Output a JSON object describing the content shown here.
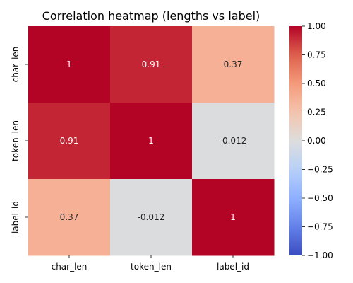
{
  "chart_data": {
    "type": "heatmap",
    "title": "Correlation heatmap (lengths vs label)",
    "x_labels": [
      "char_len",
      "token_len",
      "label_id"
    ],
    "y_labels": [
      "char_len",
      "token_len",
      "label_id"
    ],
    "values": [
      [
        1,
        0.91,
        0.37
      ],
      [
        0.91,
        1,
        -0.012
      ],
      [
        0.37,
        -0.012,
        1
      ]
    ],
    "annotations": [
      [
        "1",
        "0.91",
        "0.37"
      ],
      [
        "0.91",
        "1",
        "-0.012"
      ],
      [
        "0.37",
        "-0.012",
        "1"
      ]
    ],
    "colorbar": {
      "vmin": -1.0,
      "vmax": 1.0,
      "colormap": "coolwarm",
      "ticks": [
        "1.00",
        "0.75",
        "0.50",
        "0.25",
        "0.00",
        "−0.25",
        "−0.50",
        "−0.75",
        "−1.00"
      ],
      "tick_values": [
        1.0,
        0.75,
        0.5,
        0.25,
        0.0,
        -0.25,
        -0.5,
        -0.75,
        -1.0
      ]
    },
    "grid": false
  }
}
